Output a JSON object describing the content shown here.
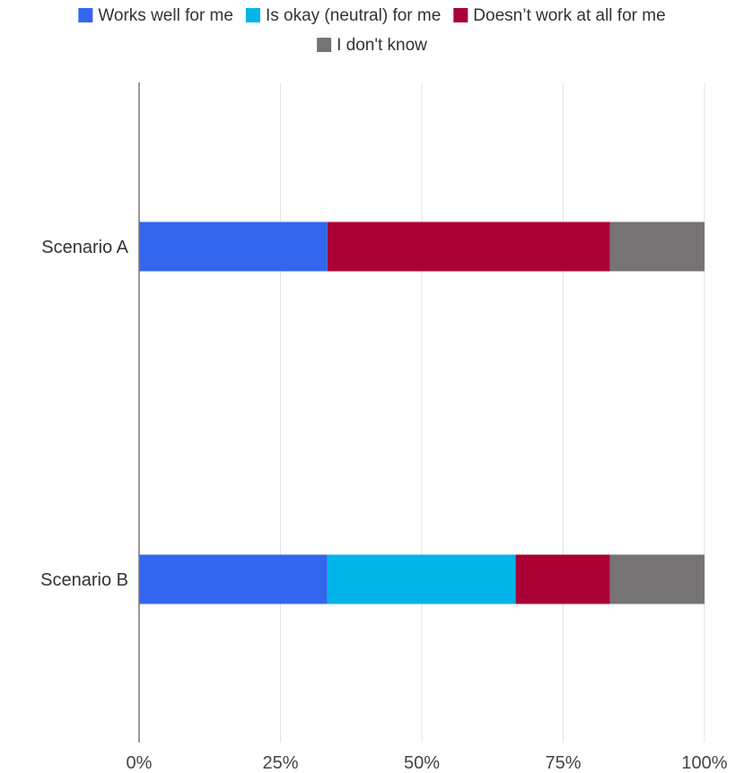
{
  "chart_data": {
    "type": "bar",
    "orientation": "horizontal",
    "stacked": true,
    "normalized": true,
    "categories": [
      "Scenario A",
      "Scenario B"
    ],
    "series": [
      {
        "name": "Works well for me",
        "color": "#3366ee",
        "values": [
          33.3,
          33.3
        ]
      },
      {
        "name": "Is okay (neutral) for me",
        "color": "#00b4e8",
        "values": [
          0,
          33.3
        ]
      },
      {
        "name": "Doesn’t work at all for me",
        "color": "#ab0033",
        "values": [
          50.0,
          16.7
        ]
      },
      {
        "name": "I don't know",
        "color": "#757373",
        "values": [
          16.7,
          16.7
        ]
      }
    ],
    "x_ticks": [
      "0%",
      "25%",
      "50%",
      "75%",
      "100%"
    ],
    "xlim": [
      0,
      100
    ],
    "grid": "vertical",
    "legend_position": "top"
  }
}
